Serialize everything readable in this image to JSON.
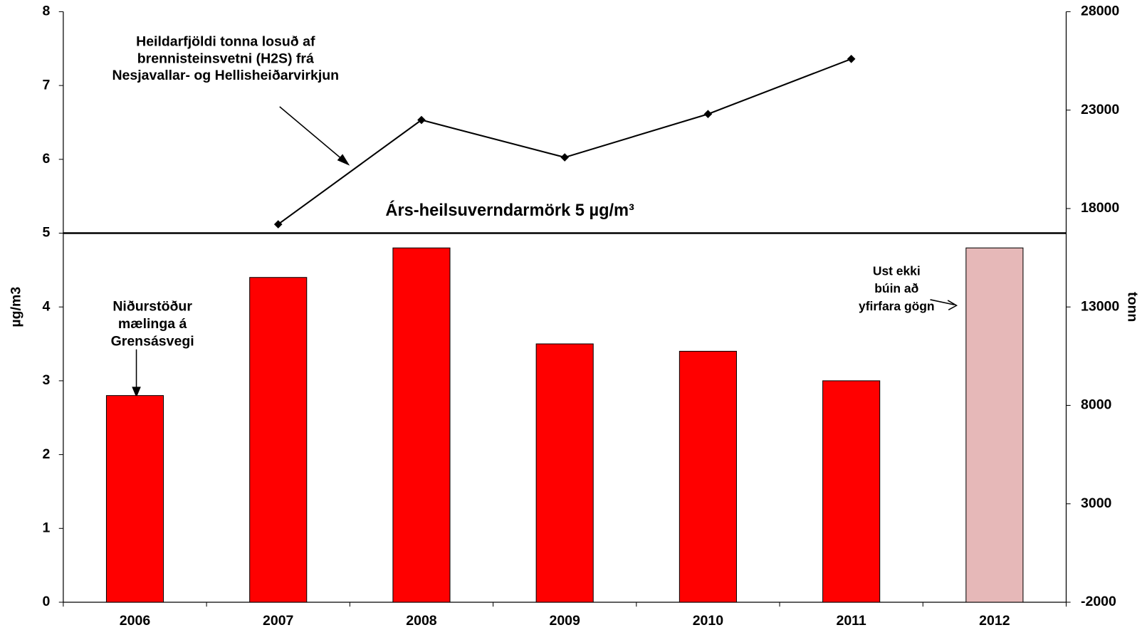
{
  "chart_data": {
    "type": "bar",
    "categories": [
      "2006",
      "2007",
      "2008",
      "2009",
      "2010",
      "2011",
      "2012"
    ],
    "series": [
      {
        "type": "bar",
        "colors": [
          "#ff0000",
          "#ff0000",
          "#ff0000",
          "#ff0000",
          "#ff0000",
          "#ff0000",
          "#e6b8b8"
        ],
        "values": [
          2.8,
          4.4,
          4.8,
          3.5,
          3.4,
          3.0,
          4.8
        ]
      },
      {
        "type": "line",
        "axis": "y2",
        "color": "#000000",
        "values": [
          null,
          17200,
          22500,
          20600,
          22800,
          25600,
          null
        ]
      }
    ],
    "ylabel": "µg/m3",
    "y2label": "tonn",
    "ylim": [
      0,
      8
    ],
    "yticks": [
      0,
      1,
      2,
      3,
      4,
      5,
      6,
      7,
      8
    ],
    "y2lim": [
      -2000,
      28000
    ],
    "y2ticks": [
      -2000,
      3000,
      8000,
      13000,
      18000,
      23000,
      28000
    ],
    "hline": {
      "value": 5,
      "label": "Árs-heilsuverndarmörk 5 µg/m³"
    },
    "annotations": [
      {
        "lines": [
          "Heildarfjöldi tonna losuð af",
          "brennisteinsvetni (H2S) frá",
          "Nesjavallar- og Hellisheiðarvirkjun"
        ]
      },
      {
        "lines": [
          "Niðurstöður",
          "mælinga á",
          "Grensásvegi"
        ]
      },
      {
        "lines": [
          "Ust ekki",
          "búin að",
          "yfirfara gögn"
        ]
      }
    ]
  }
}
